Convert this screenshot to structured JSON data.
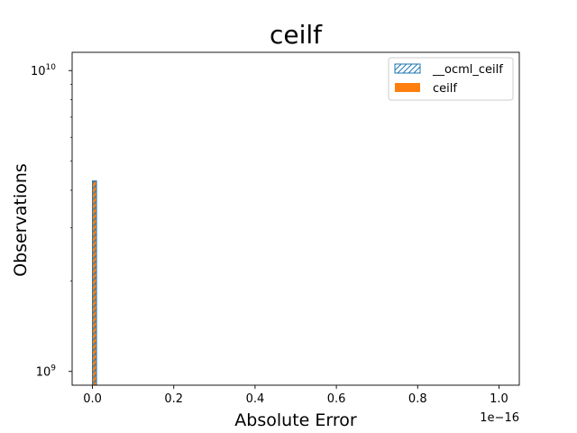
{
  "chart_data": {
    "type": "bar",
    "title": "ceilf",
    "xlabel": "Absolute Error",
    "ylabel": "Observations",
    "x_offset_label": "1e−16",
    "xlim": [
      -0.05,
      1.05
    ],
    "ylim_log": [
      900000000,
      11500000000
    ],
    "y_scale": "log",
    "x_ticks": [
      {
        "value": 0.0,
        "label": "0.0"
      },
      {
        "value": 0.2,
        "label": "0.2"
      },
      {
        "value": 0.4,
        "label": "0.4"
      },
      {
        "value": 0.6,
        "label": "0.6"
      },
      {
        "value": 0.8,
        "label": "0.8"
      },
      {
        "value": 1.0,
        "label": "1.0"
      }
    ],
    "y_ticks": [
      {
        "value": 1000000000,
        "base": "10",
        "exp": "9"
      },
      {
        "value": 10000000000,
        "base": "10",
        "exp": "10"
      }
    ],
    "series": [
      {
        "name": "__ocml_ceilf",
        "color": "#1f77b4",
        "style": "hatched-outline",
        "bins": [
          {
            "x0": 0.0,
            "x1": 0.01,
            "value": 4300000000
          }
        ]
      },
      {
        "name": "ceilf",
        "color": "#ff7f0e",
        "style": "filled",
        "bins": [
          {
            "x0": 0.0,
            "x1": 0.01,
            "value": 4300000000
          }
        ]
      }
    ],
    "legend_position": "upper right",
    "grid": false
  }
}
